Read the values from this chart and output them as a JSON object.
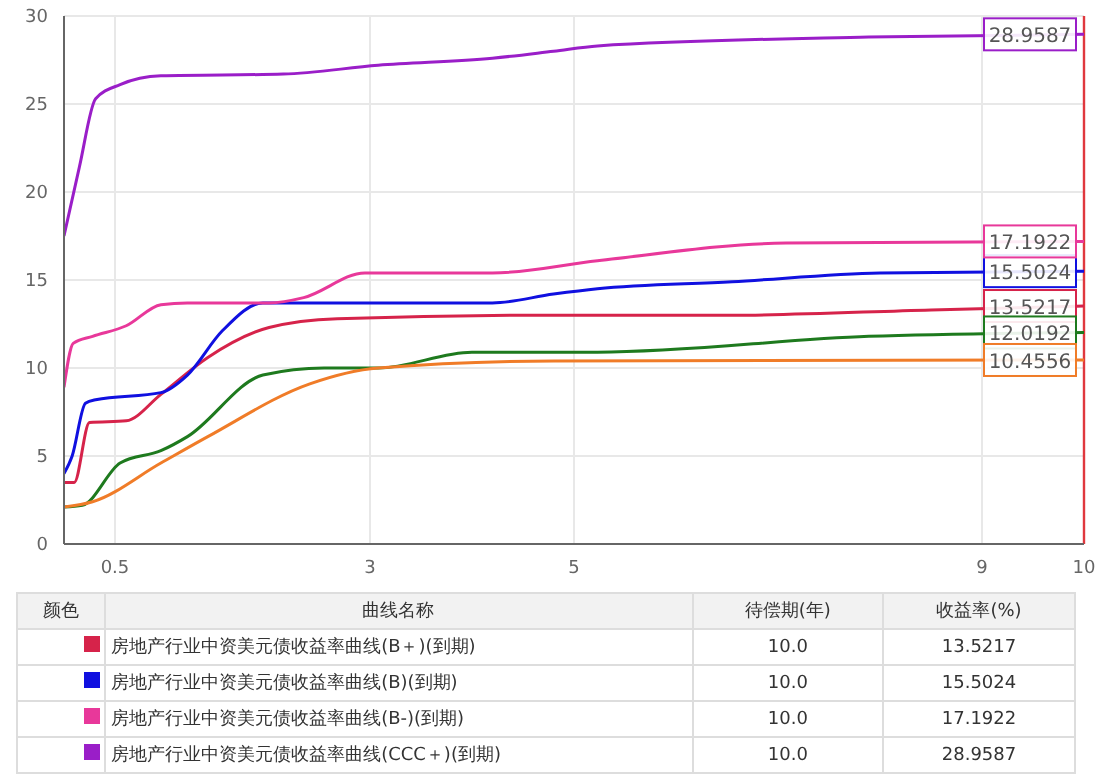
{
  "chart_data": {
    "type": "line",
    "xlim": [
      0,
      10
    ],
    "xticks": [
      0.5,
      3,
      5,
      9,
      10
    ],
    "ylim": [
      0,
      30
    ],
    "yticks": [
      0,
      5,
      10,
      15,
      20,
      25,
      30
    ],
    "grid": true,
    "legend": "bottom",
    "marker": "none",
    "line_style": "solid",
    "annotations": [
      "颜色",
      "曲线名称",
      "待偿期(年)",
      "收益率(%)",
      "10.0",
      "10.0",
      "10.0",
      "10.0"
    ],
    "ref_lines": [
      {
        "axis": "x",
        "value": 10,
        "color": "#e0383e"
      }
    ],
    "series": [
      {
        "name": "房地产行业中资美元债收益率曲线(B＋)(到期)",
        "color": "#d6234a",
        "x": [
          0,
          0.1,
          0.25,
          0.61,
          0.95,
          1.41,
          2.01,
          2.68,
          4.8,
          6.55,
          8.5,
          10
        ],
        "values": [
          3.5,
          3.5,
          6.9,
          7.0,
          8.5,
          10.6,
          12.3,
          12.8,
          13.0,
          13.0,
          13.3,
          13.5217
        ],
        "value_labels": [
          null,
          null,
          null,
          null,
          null,
          null,
          null,
          null,
          null,
          null,
          null,
          "13.5217"
        ]
      },
      {
        "name": "房地产行业中资美元债收益率曲线(B)(到期)",
        "color": "#1010e0",
        "x": [
          0,
          0.08,
          0.21,
          0.31,
          0.95,
          1.21,
          1.55,
          1.95,
          2.55,
          4.2,
          4.8,
          5.23,
          6.55,
          8.0,
          10
        ],
        "values": [
          4.0,
          5.0,
          8.0,
          8.2,
          8.6,
          9.6,
          12.1,
          13.7,
          13.7,
          13.7,
          14.2,
          14.5,
          14.9,
          15.4,
          15.5024
        ],
        "value_labels": [
          null,
          null,
          null,
          null,
          null,
          null,
          null,
          null,
          null,
          null,
          null,
          null,
          null,
          null,
          "15.5024"
        ]
      },
      {
        "name": "房地产行业中资美元债收益率曲线(B-)(到期)",
        "color": "#e8389a",
        "x": [
          0,
          0.09,
          0.28,
          0.61,
          0.95,
          1.21,
          2.01,
          2.35,
          2.95,
          4.2,
          5.23,
          7.08,
          10
        ],
        "values": [
          8.9,
          11.4,
          11.8,
          12.4,
          13.6,
          13.7,
          13.7,
          14.0,
          15.4,
          15.4,
          16.1,
          17.1,
          17.1922
        ],
        "value_labels": [
          null,
          null,
          null,
          null,
          null,
          null,
          null,
          null,
          null,
          null,
          null,
          null,
          "17.1922"
        ]
      },
      {
        "name": "房地产行业中资美元债收益率曲线(CCC＋)(到期)",
        "color": "#9a1ec8",
        "x": [
          0,
          0.15,
          0.31,
          0.55,
          0.95,
          2.15,
          3.08,
          4.2,
          4.8,
          5.23,
          7.89,
          10
        ],
        "values": [
          17.5,
          21.4,
          25.3,
          26.1,
          26.6,
          26.7,
          27.2,
          27.6,
          28.0,
          28.3,
          28.8,
          28.9587
        ],
        "value_labels": [
          null,
          null,
          null,
          null,
          null,
          null,
          null,
          null,
          null,
          null,
          null,
          "28.9587"
        ]
      },
      {
        "color": "#1e7a1e",
        "x": [
          0,
          0.18,
          0.55,
          0.95,
          1.21,
          1.95,
          2.55,
          3.08,
          4.0,
          4.8,
          5.23,
          7.89,
          10
        ],
        "values": [
          2.1,
          2.2,
          4.6,
          5.3,
          6.1,
          9.6,
          10.0,
          10.0,
          10.9,
          10.9,
          10.9,
          11.8,
          12.0192
        ],
        "value_labels": [
          null,
          null,
          null,
          null,
          null,
          null,
          null,
          null,
          null,
          null,
          null,
          null,
          "12.0192"
        ]
      },
      {
        "color": "#f07c28",
        "x": [
          0,
          0.28,
          0.95,
          1.41,
          2.41,
          3.08,
          4.8,
          10
        ],
        "values": [
          2.1,
          2.4,
          4.6,
          6.1,
          9.1,
          10.0,
          10.4,
          10.4556
        ],
        "value_labels": [
          null,
          null,
          null,
          null,
          null,
          null,
          null,
          "10.4556"
        ]
      }
    ]
  }
}
